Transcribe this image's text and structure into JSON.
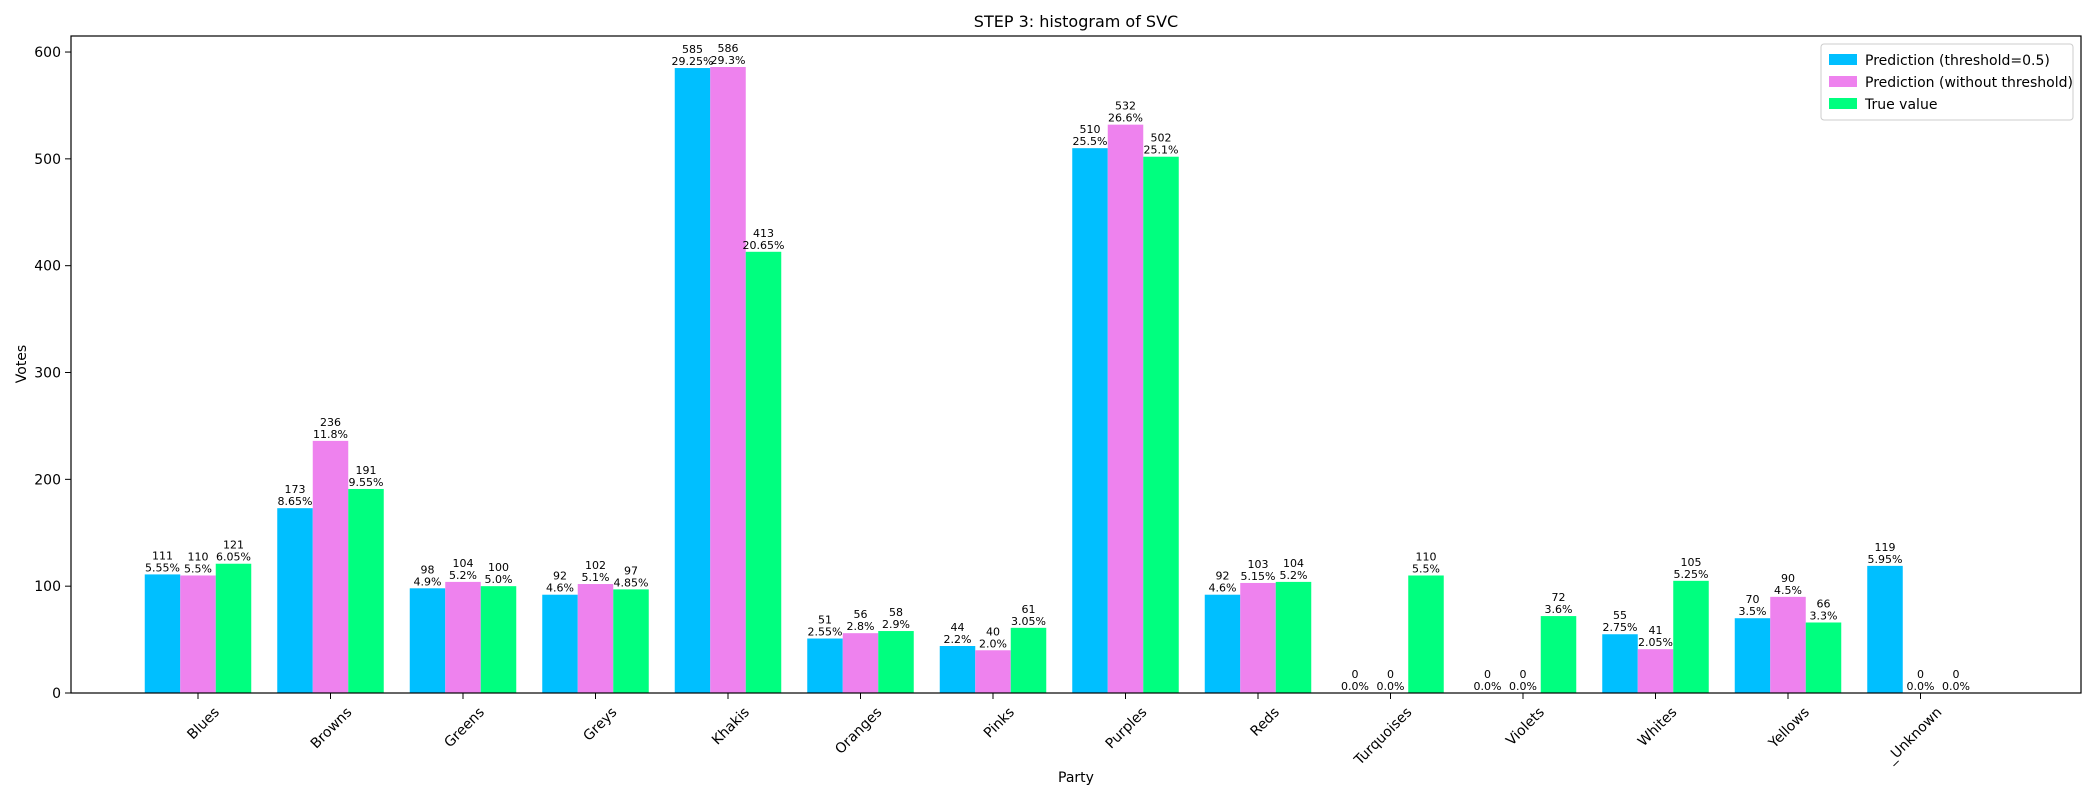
{
  "chart_data": {
    "type": "bar",
    "title": "STEP 3: histogram of SVC",
    "xlabel": "Party",
    "ylabel": "Votes",
    "ylim": [
      0,
      615
    ],
    "yticks": [
      0,
      100,
      200,
      300,
      400,
      500,
      600
    ],
    "legend_position": "top-right",
    "categories": [
      "Blues",
      "Browns",
      "Greens",
      "Greys",
      "Khakis",
      "Oranges",
      "Pinks",
      "Purples",
      "Reds",
      "Turquoises",
      "Violets",
      "Whites",
      "Yellows",
      "_Unknown"
    ],
    "series": [
      {
        "name": "Prediction (threshold=0.5)",
        "color": "#00bfff",
        "values": [
          111,
          173,
          98,
          92,
          585,
          51,
          44,
          510,
          92,
          0,
          0,
          55,
          70,
          119
        ],
        "labels": [
          "5.55%",
          "8.65%",
          "4.9%",
          "4.6%",
          "29.25%",
          "2.55%",
          "2.2%",
          "25.5%",
          "4.6%",
          "0.0%",
          "0.0%",
          "2.75%",
          "3.5%",
          "5.95%"
        ]
      },
      {
        "name": "Prediction (without threshold)",
        "color": "#ee82ee",
        "values": [
          110,
          236,
          104,
          102,
          586,
          56,
          40,
          532,
          103,
          0,
          0,
          41,
          90,
          0
        ],
        "labels": [
          "5.5%",
          "11.8%",
          "5.2%",
          "5.1%",
          "29.3%",
          "2.8%",
          "2.0%",
          "26.6%",
          "5.15%",
          "0.0%",
          "0.0%",
          "2.05%",
          "4.5%",
          "0.0%"
        ]
      },
      {
        "name": "True value",
        "color": "#00ff7f",
        "values": [
          121,
          191,
          100,
          97,
          413,
          58,
          61,
          502,
          104,
          110,
          72,
          105,
          66,
          0
        ],
        "labels": [
          "6.05%",
          "9.55%",
          "5.0%",
          "4.85%",
          "20.65%",
          "2.9%",
          "3.05%",
          "25.1%",
          "5.2%",
          "5.5%",
          "3.6%",
          "5.25%",
          "3.3%",
          "0.0%"
        ]
      }
    ]
  }
}
